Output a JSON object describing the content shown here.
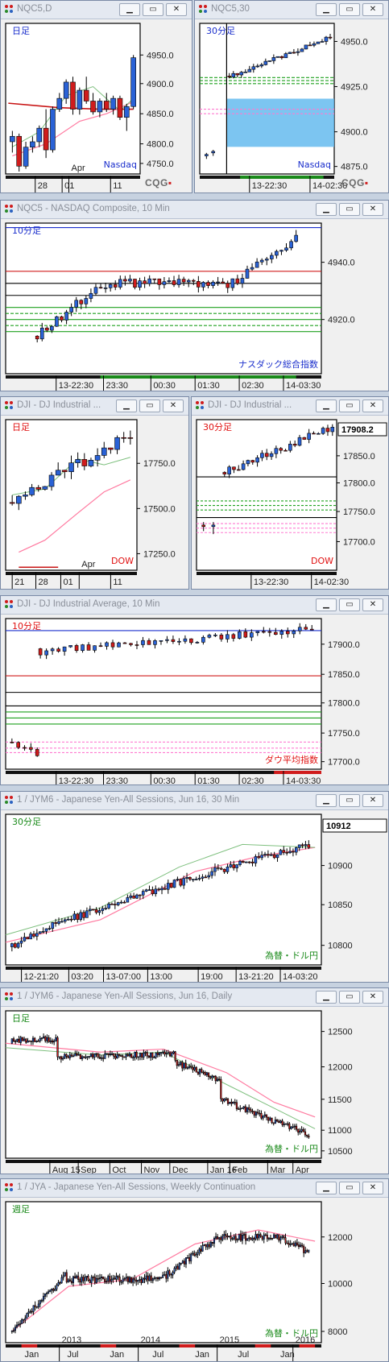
{
  "windows": [
    {
      "id": "nqc5-daily",
      "title": "NQC5,D",
      "label": "日足",
      "label_color": "#1a2ecc",
      "watermark": "Nasdaq",
      "watermark_color": "#1a2ecc",
      "show_cqg": true,
      "chart_data": {
        "type": "candlestick",
        "y_ticks": [
          "4950.0",
          "4900.0",
          "4850.0",
          "4800.0",
          "4750.0"
        ],
        "x_ticks": [
          "28",
          "01",
          "Apr",
          "11"
        ],
        "candles": [
          [
            4790,
            4810,
            4770,
            4800
          ],
          [
            4800,
            4805,
            4735,
            4745
          ],
          [
            4745,
            4790,
            4740,
            4780
          ],
          [
            4780,
            4800,
            4770,
            4790
          ],
          [
            4790,
            4820,
            4780,
            4815
          ],
          [
            4815,
            4850,
            4760,
            4775
          ],
          [
            4775,
            4855,
            4770,
            4850
          ],
          [
            4850,
            4880,
            4845,
            4870
          ],
          [
            4870,
            4905,
            4860,
            4900
          ],
          [
            4900,
            4910,
            4840,
            4850
          ],
          [
            4850,
            4890,
            4840,
            4885
          ],
          [
            4885,
            4910,
            4860,
            4865
          ],
          [
            4865,
            4880,
            4840,
            4845
          ],
          [
            4845,
            4870,
            4835,
            4865
          ],
          [
            4865,
            4880,
            4845,
            4850
          ],
          [
            4850,
            4875,
            4840,
            4870
          ],
          [
            4870,
            4875,
            4830,
            4835
          ],
          [
            4835,
            4860,
            4810,
            4855
          ],
          [
            4855,
            4950,
            4850,
            4945
          ]
        ]
      }
    },
    {
      "id": "nqc5-30",
      "title": "NQC5,30",
      "label": "30分足",
      "label_color": "#1a2ecc",
      "watermark": "Nasdaq",
      "watermark_color": "#1a2ecc",
      "show_cqg": true,
      "chart_data": {
        "type": "candlestick",
        "y_ticks": [
          "4950.0",
          "4925.0",
          "4900.0",
          "4875.0"
        ],
        "x_ticks": [
          "13-22:30",
          "14-02:30"
        ]
      }
    },
    {
      "id": "nqc5-10",
      "title": "NQC5 - NASDAQ Composite, 10 Min",
      "label": "10分足",
      "label_color": "#1a2ecc",
      "watermark": "ナスダック総合指数",
      "watermark_color": "#1a2ecc",
      "show_cqg": false,
      "chart_data": {
        "type": "candlestick",
        "y_ticks": [
          "4940.0",
          "4920.0"
        ],
        "x_ticks": [
          "13-22:30",
          "23:30",
          "00:30",
          "01:30",
          "02:30",
          "14-03:30"
        ]
      }
    },
    {
      "id": "dji-daily",
      "title": "DJI - DJ Industrial ...",
      "label": "日足",
      "label_color": "#e01010",
      "watermark": "DOW",
      "watermark_color": "#e01010",
      "show_cqg": false,
      "chart_data": {
        "type": "candlestick",
        "y_ticks": [
          "17750.0",
          "17500.0",
          "17250.0"
        ],
        "x_ticks": [
          "21",
          "28",
          "01",
          "Apr",
          "11"
        ]
      }
    },
    {
      "id": "dji-30",
      "title": "DJI - DJ Industrial ...",
      "label": "30分足",
      "label_color": "#e01010",
      "watermark": "DOW",
      "watermark_color": "#e01010",
      "show_cqg": false,
      "chart_data": {
        "type": "candlestick",
        "last_price": "17908.2",
        "y_ticks": [
          "17850.0",
          "17800.0",
          "17750.0",
          "17700.0"
        ],
        "x_ticks": [
          "13-22:30",
          "14-02:30"
        ]
      }
    },
    {
      "id": "dji-10",
      "title": "DJI - DJ Industrial Average, 10 Min",
      "label": "10分足",
      "label_color": "#e01010",
      "watermark": "ダウ平均指数",
      "watermark_color": "#e01010",
      "show_cqg": false,
      "chart_data": {
        "type": "candlestick",
        "y_ticks": [
          "17900.0",
          "17850.0",
          "17800.0",
          "17750.0",
          "17700.0"
        ],
        "x_ticks": [
          "13-22:30",
          "23:30",
          "00:30",
          "01:30",
          "02:30",
          "14-03:30"
        ]
      }
    },
    {
      "id": "jym6-30",
      "title": "1 / JYM6 - Japanese Yen-All Sessions, Jun 16, 30 Min",
      "label": "30分足",
      "label_color": "#1a8a1a",
      "watermark": "為替・ドル円",
      "watermark_color": "#1a8a1a",
      "show_cqg": false,
      "chart_data": {
        "type": "candlestick",
        "last_price": "10912",
        "y_ticks": [
          "10900",
          "10850",
          "10800"
        ],
        "x_ticks": [
          "12-21:20",
          "03:20",
          "13-07:00",
          "13:00",
          "19:00",
          "13-21:20",
          "14-03:20"
        ]
      }
    },
    {
      "id": "jym6-daily",
      "title": "1 / JYM6 - Japanese Yen-All Sessions, Jun 16, Daily",
      "label": "日足",
      "label_color": "#1a8a1a",
      "watermark": "為替・ドル円",
      "watermark_color": "#1a8a1a",
      "show_cqg": false,
      "chart_data": {
        "type": "candlestick",
        "y_ticks": [
          "12500",
          "12000",
          "11500",
          "11000",
          "10500"
        ],
        "x_ticks": [
          "Aug 15",
          "Sep",
          "Oct",
          "Nov",
          "Dec",
          "Jan 16",
          "Feb",
          "Mar",
          "Apr"
        ]
      }
    },
    {
      "id": "jya-weekly",
      "title": "1 / JYA - Japanese Yen-All Sessions, Weekly Continuation",
      "label": "週足",
      "label_color": "#1a8a1a",
      "watermark": "為替・ドル円",
      "watermark_color": "#1a8a1a",
      "show_cqg": false,
      "chart_data": {
        "type": "candlestick",
        "y_ticks": [
          "12000",
          "10000",
          "8000"
        ],
        "x_ticks": [
          "2013",
          "2014",
          "2015",
          "2016"
        ],
        "x_subticks": [
          "Jan",
          "Jul",
          "Jan",
          "Jul",
          "Jan",
          "Jul",
          "Jan"
        ]
      }
    }
  ]
}
